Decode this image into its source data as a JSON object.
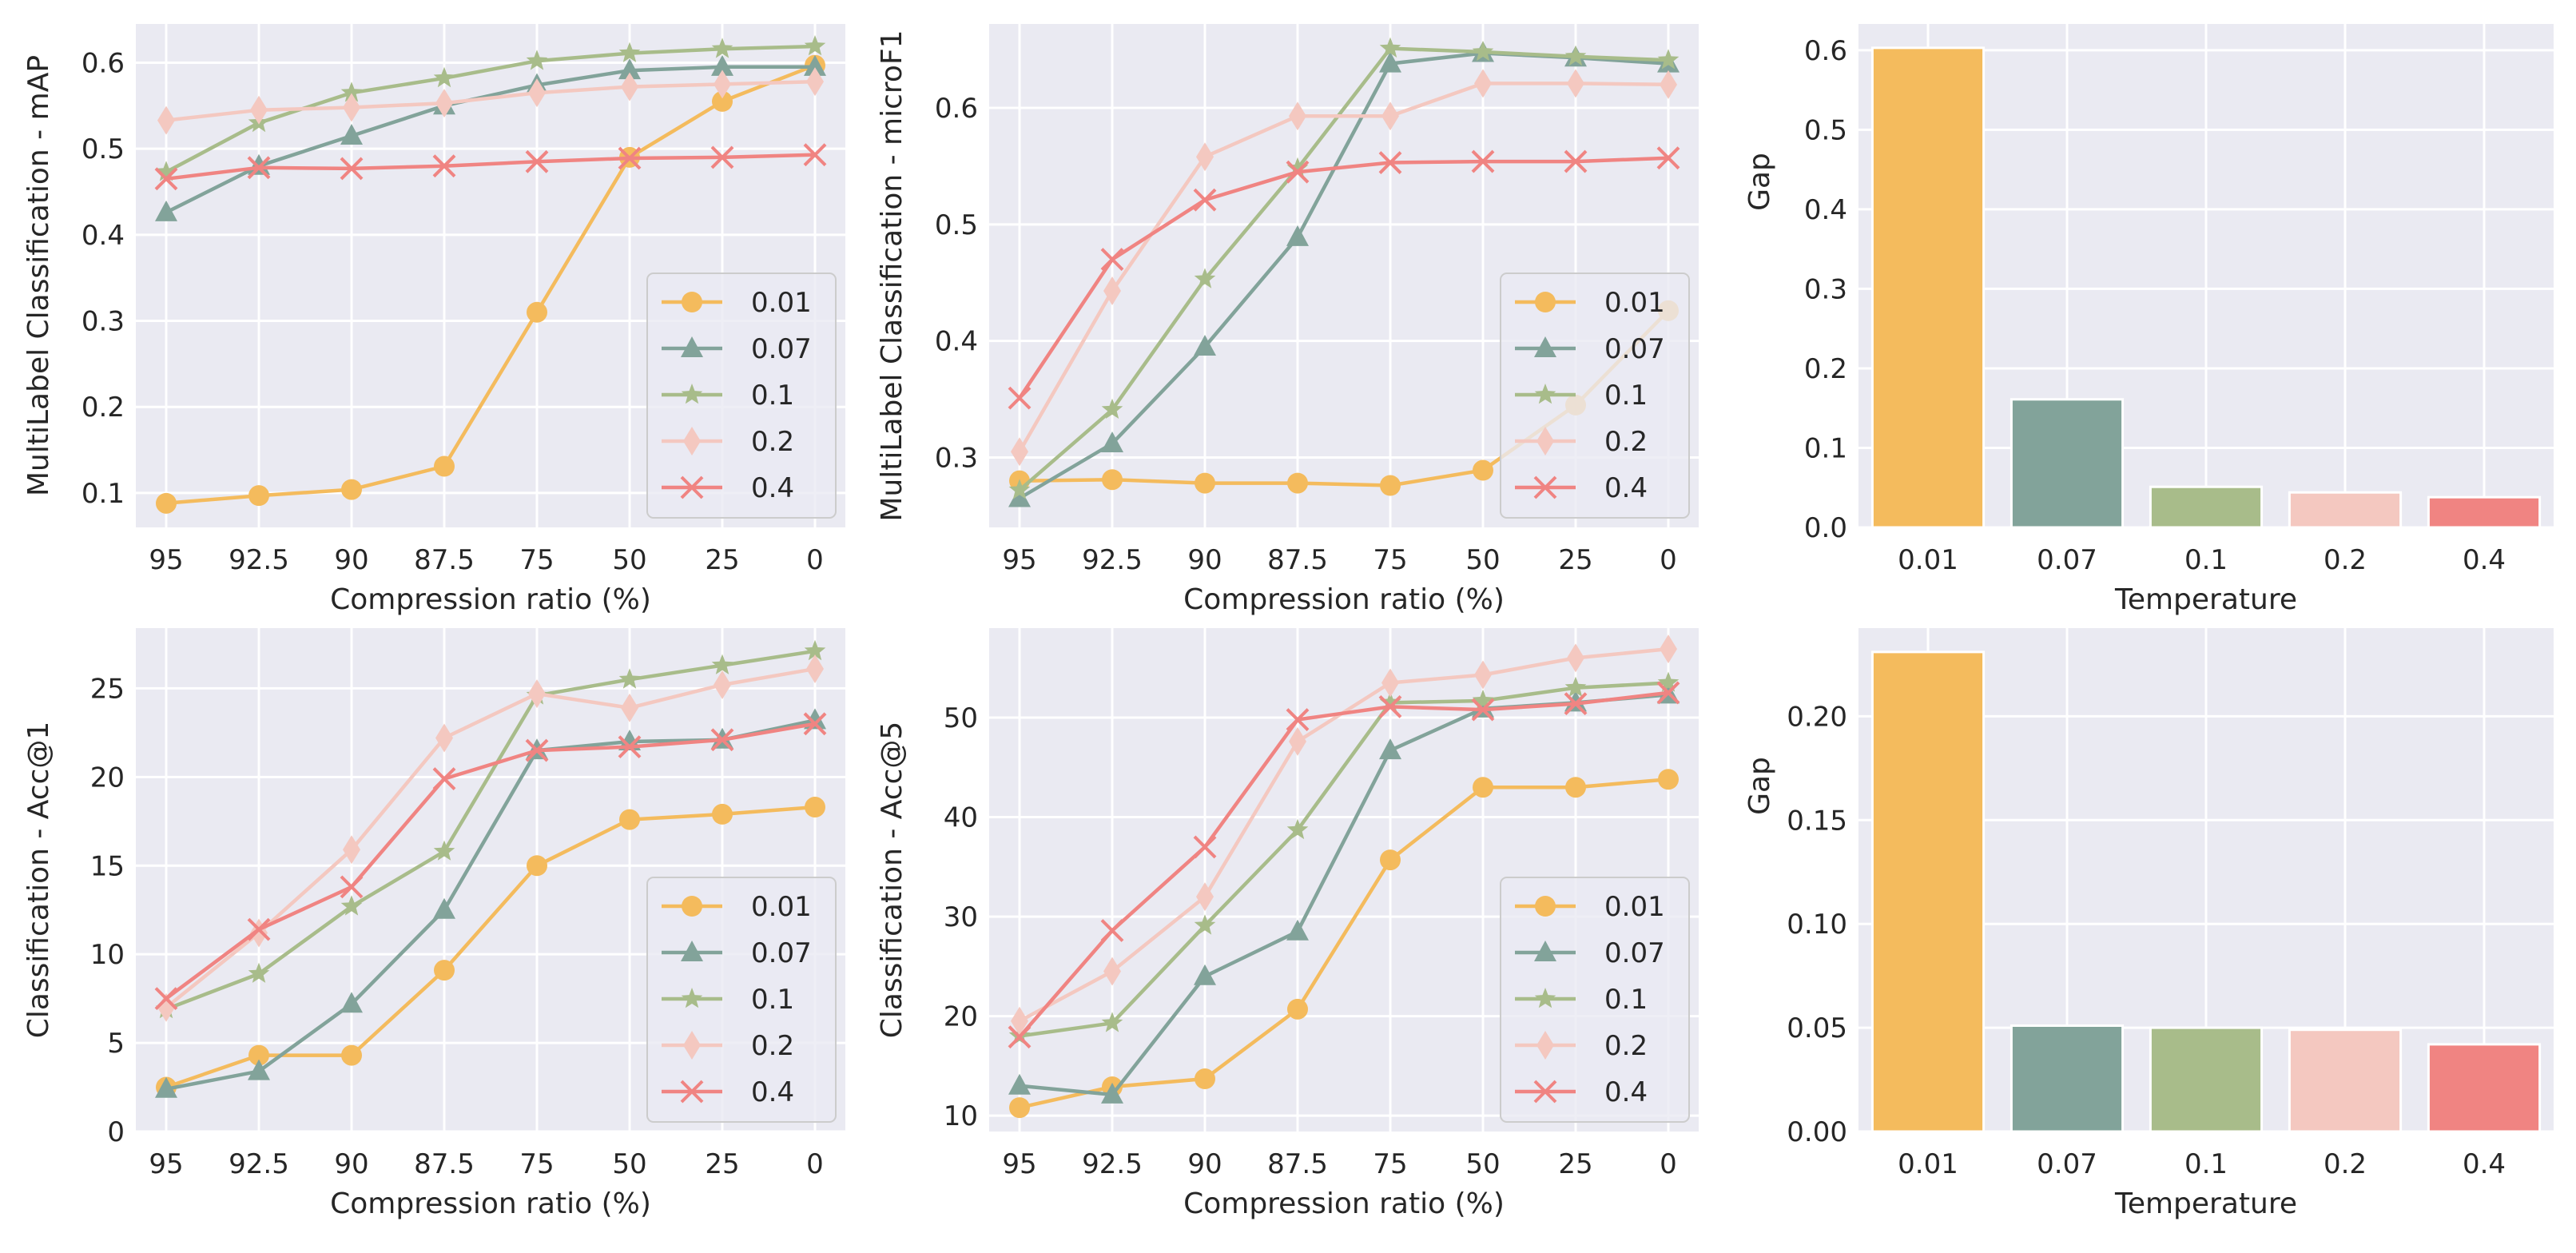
{
  "colors": {
    "0.01": "#f4bb5d",
    "0.07": "#82a39a",
    "0.1": "#a8bc8a",
    "0.2": "#f4c8c0",
    "0.4": "#f08482",
    "axes_bg": "#eaeaf2"
  },
  "chart_data": [
    {
      "type": "line",
      "xlabel": "Compression ratio (%)",
      "ylabel": "MultiLabel Classification - mAP",
      "categories": [
        "95",
        "92.5",
        "90",
        "87.5",
        "75",
        "50",
        "25",
        "0"
      ],
      "ylim": [
        0.06,
        0.645
      ],
      "yticks": [
        0.1,
        0.2,
        0.3,
        0.4,
        0.5,
        0.6
      ],
      "ytick_labels": [
        "0.1",
        "0.2",
        "0.3",
        "0.4",
        "0.5",
        "0.6"
      ],
      "legend": "lower-right",
      "series": [
        {
          "name": "0.01",
          "marker": "circle",
          "values": [
            0.088,
            0.097,
            0.104,
            0.131,
            0.31,
            0.49,
            0.555,
            0.597
          ]
        },
        {
          "name": "0.07",
          "marker": "triangle",
          "values": [
            0.426,
            0.48,
            0.515,
            0.55,
            0.574,
            0.591,
            0.595,
            0.595
          ]
        },
        {
          "name": "0.1",
          "marker": "star",
          "values": [
            0.473,
            0.53,
            0.565,
            0.582,
            0.602,
            0.611,
            0.616,
            0.619
          ]
        },
        {
          "name": "0.2",
          "marker": "diamond",
          "values": [
            0.533,
            0.545,
            0.548,
            0.553,
            0.565,
            0.572,
            0.575,
            0.578
          ]
        },
        {
          "name": "0.4",
          "marker": "x",
          "values": [
            0.465,
            0.478,
            0.477,
            0.48,
            0.485,
            0.489,
            0.49,
            0.493
          ]
        }
      ]
    },
    {
      "type": "line",
      "xlabel": "Compression ratio (%)",
      "ylabel": "MultiLabel Classification - microF1",
      "categories": [
        "95",
        "92.5",
        "90",
        "87.5",
        "75",
        "50",
        "25",
        "0"
      ],
      "ylim": [
        0.24,
        0.672
      ],
      "yticks": [
        0.3,
        0.4,
        0.5,
        0.6
      ],
      "ytick_labels": [
        "0.3",
        "0.4",
        "0.5",
        "0.6"
      ],
      "legend": "lower-right",
      "series": [
        {
          "name": "0.01",
          "marker": "circle",
          "values": [
            0.28,
            0.281,
            0.278,
            0.278,
            0.276,
            0.289,
            0.345,
            0.426
          ]
        },
        {
          "name": "0.07",
          "marker": "triangle",
          "values": [
            0.265,
            0.312,
            0.395,
            0.489,
            0.638,
            0.647,
            0.643,
            0.638
          ]
        },
        {
          "name": "0.1",
          "marker": "star",
          "values": [
            0.272,
            0.341,
            0.453,
            0.548,
            0.651,
            0.648,
            0.644,
            0.641
          ]
        },
        {
          "name": "0.2",
          "marker": "diamond",
          "values": [
            0.305,
            0.443,
            0.558,
            0.593,
            0.593,
            0.621,
            0.621,
            0.62
          ]
        },
        {
          "name": "0.4",
          "marker": "x",
          "values": [
            0.351,
            0.47,
            0.521,
            0.545,
            0.553,
            0.554,
            0.554,
            0.557
          ]
        }
      ]
    },
    {
      "type": "bar",
      "xlabel": "Temperature",
      "ylabel": "Gap",
      "categories": [
        "0.01",
        "0.07",
        "0.1",
        "0.2",
        "0.4"
      ],
      "values": [
        0.603,
        0.161,
        0.051,
        0.044,
        0.038
      ],
      "ylim": [
        0.0,
        0.633
      ],
      "yticks": [
        0.0,
        0.1,
        0.2,
        0.3,
        0.4,
        0.5,
        0.6
      ],
      "ytick_labels": [
        "0.0",
        "0.1",
        "0.2",
        "0.3",
        "0.4",
        "0.5",
        "0.6"
      ]
    },
    {
      "type": "line",
      "xlabel": "Compression ratio (%)",
      "ylabel": "Classification - Acc@1",
      "categories": [
        "95",
        "92.5",
        "90",
        "87.5",
        "75",
        "50",
        "25",
        "0"
      ],
      "ylim": [
        0.0,
        28.4
      ],
      "yticks": [
        0,
        5,
        10,
        15,
        20,
        25
      ],
      "ytick_labels": [
        "0",
        "5",
        "10",
        "15",
        "20",
        "25"
      ],
      "legend": "lower-right",
      "series": [
        {
          "name": "0.01",
          "marker": "circle",
          "values": [
            2.5,
            4.3,
            4.3,
            9.1,
            15.0,
            17.6,
            17.9,
            18.3
          ]
        },
        {
          "name": "0.07",
          "marker": "triangle",
          "values": [
            2.4,
            3.4,
            7.2,
            12.5,
            21.5,
            22.0,
            22.1,
            23.2
          ]
        },
        {
          "name": "0.1",
          "marker": "star",
          "values": [
            6.9,
            8.9,
            12.7,
            15.8,
            24.6,
            25.5,
            26.3,
            27.1
          ]
        },
        {
          "name": "0.2",
          "marker": "diamond",
          "values": [
            7.0,
            11.2,
            15.9,
            22.2,
            24.7,
            23.9,
            25.2,
            26.1
          ]
        },
        {
          "name": "0.4",
          "marker": "x",
          "values": [
            7.5,
            11.4,
            13.8,
            19.9,
            21.5,
            21.7,
            22.1,
            23.0
          ]
        }
      ]
    },
    {
      "type": "line",
      "xlabel": "Compression ratio (%)",
      "ylabel": "Classification - Acc@5",
      "categories": [
        "95",
        "92.5",
        "90",
        "87.5",
        "75",
        "50",
        "25",
        "0"
      ],
      "ylim": [
        8.4,
        59.0
      ],
      "yticks": [
        10,
        20,
        30,
        40,
        50
      ],
      "ytick_labels": [
        "10",
        "20",
        "30",
        "40",
        "50"
      ],
      "legend": "lower-right",
      "series": [
        {
          "name": "0.01",
          "marker": "circle",
          "values": [
            10.8,
            12.9,
            13.7,
            20.7,
            35.7,
            43.0,
            43.0,
            43.8
          ]
        },
        {
          "name": "0.07",
          "marker": "triangle",
          "values": [
            13.0,
            12.1,
            24.0,
            28.5,
            46.7,
            50.9,
            51.5,
            52.3
          ]
        },
        {
          "name": "0.1",
          "marker": "star",
          "values": [
            18.0,
            19.3,
            29.1,
            38.7,
            51.5,
            51.7,
            53.0,
            53.5
          ]
        },
        {
          "name": "0.2",
          "marker": "diamond",
          "values": [
            19.5,
            24.5,
            32.0,
            47.6,
            53.5,
            54.3,
            56.0,
            56.9
          ]
        },
        {
          "name": "0.4",
          "marker": "x",
          "values": [
            17.9,
            28.6,
            37.0,
            49.8,
            51.1,
            50.8,
            51.4,
            52.5
          ]
        }
      ]
    },
    {
      "type": "bar",
      "xlabel": "Temperature",
      "ylabel": "Gap",
      "categories": [
        "0.01",
        "0.07",
        "0.1",
        "0.2",
        "0.4"
      ],
      "values": [
        0.231,
        0.051,
        0.05,
        0.049,
        0.042
      ],
      "ylim": [
        0.0,
        0.2425
      ],
      "yticks": [
        0.0,
        0.05,
        0.1,
        0.15,
        0.2
      ],
      "ytick_labels": [
        "0.00",
        "0.05",
        "0.10",
        "0.15",
        "0.20"
      ]
    }
  ]
}
